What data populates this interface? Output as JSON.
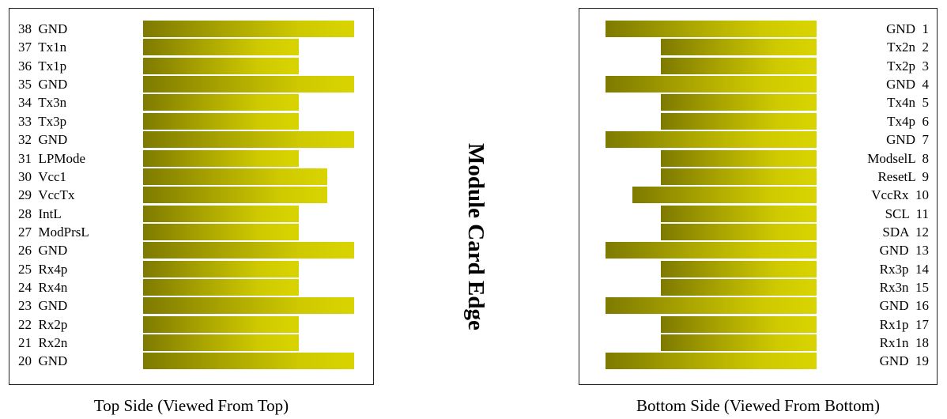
{
  "title": "Module Card Edge",
  "top_side": {
    "caption": "Top Side (Viewed From Top)",
    "pins": [
      {
        "label": "38  GND",
        "length": "long"
      },
      {
        "label": "37  Tx1n",
        "length": "short"
      },
      {
        "label": "36  Tx1p",
        "length": "short"
      },
      {
        "label": "35  GND",
        "length": "long"
      },
      {
        "label": "34  Tx3n",
        "length": "short"
      },
      {
        "label": "33  Tx3p",
        "length": "short"
      },
      {
        "label": "32  GND",
        "length": "long"
      },
      {
        "label": "31  LPMode",
        "length": "short"
      },
      {
        "label": "30  Vcc1",
        "length": "medium"
      },
      {
        "label": "29  VccTx",
        "length": "medium"
      },
      {
        "label": "28  IntL",
        "length": "short"
      },
      {
        "label": "27  ModPrsL",
        "length": "short"
      },
      {
        "label": "26  GND",
        "length": "long"
      },
      {
        "label": "25  Rx4p",
        "length": "short"
      },
      {
        "label": "24  Rx4n",
        "length": "short"
      },
      {
        "label": "23  GND",
        "length": "long"
      },
      {
        "label": "22  Rx2p",
        "length": "short"
      },
      {
        "label": "21  Rx2n",
        "length": "short"
      },
      {
        "label": "20  GND",
        "length": "long"
      }
    ]
  },
  "bottom_side": {
    "caption": "Bottom Side (Viewed From Bottom)",
    "pins": [
      {
        "label": "GND  1",
        "length": "long"
      },
      {
        "label": "Tx2n  2",
        "length": "short"
      },
      {
        "label": "Tx2p  3",
        "length": "short"
      },
      {
        "label": "GND  4",
        "length": "long"
      },
      {
        "label": "Tx4n  5",
        "length": "short"
      },
      {
        "label": "Tx4p  6",
        "length": "short"
      },
      {
        "label": "GND  7",
        "length": "long"
      },
      {
        "label": "ModselL  8",
        "length": "short"
      },
      {
        "label": "ResetL  9",
        "length": "short"
      },
      {
        "label": "VccRx  10",
        "length": "medium"
      },
      {
        "label": "SCL  11",
        "length": "short"
      },
      {
        "label": "SDA  12",
        "length": "short"
      },
      {
        "label": "GND  13",
        "length": "long"
      },
      {
        "label": "Rx3p  14",
        "length": "short"
      },
      {
        "label": "Rx3n  15",
        "length": "short"
      },
      {
        "label": "GND  16",
        "length": "long"
      },
      {
        "label": "Rx1p  17",
        "length": "short"
      },
      {
        "label": "Rx1n  18",
        "length": "short"
      },
      {
        "label": "GND  19",
        "length": "long"
      }
    ]
  }
}
